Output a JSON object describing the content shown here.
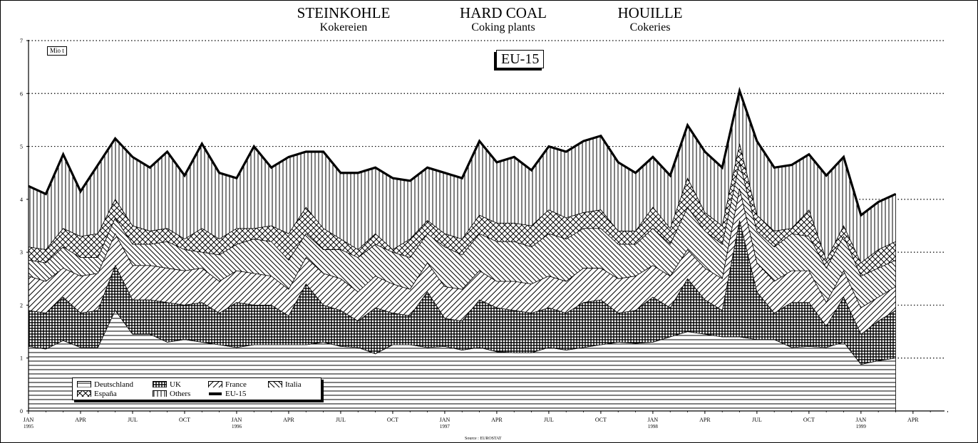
{
  "header": {
    "title_de": "STEINKOHLE",
    "title_en": "HARD COAL",
    "title_fr": "HOUILLE",
    "subtitle_de": "Kokereien",
    "subtitle_en": "Coking plants",
    "subtitle_fr": "Cokeries"
  },
  "unit_label": "Mio t",
  "region_badge": "EU-15",
  "source": "Source : EUROSTAT",
  "colors": {
    "ink": "#000000",
    "background": "#ffffff",
    "grid": "#000000"
  },
  "chart_data": {
    "type": "area",
    "stacked": true,
    "grid": "horizontal dotted",
    "legend_position": "bottom-left",
    "ylim": [
      0,
      7
    ],
    "y_ticks": [
      "0",
      "1",
      "2",
      "3",
      "4",
      "5",
      "6",
      "7"
    ],
    "x_tick_labels": [
      {
        "label": "JAN",
        "year": "1995"
      },
      {
        "label": "APR",
        "year": ""
      },
      {
        "label": "JUL",
        "year": ""
      },
      {
        "label": "OCT",
        "year": ""
      },
      {
        "label": "JAN",
        "year": "1996"
      },
      {
        "label": "APR",
        "year": ""
      },
      {
        "label": "JUL",
        "year": ""
      },
      {
        "label": "OCT",
        "year": ""
      },
      {
        "label": "JAN",
        "year": "1997"
      },
      {
        "label": "APR",
        "year": ""
      },
      {
        "label": "JUL",
        "year": ""
      },
      {
        "label": "OCT",
        "year": ""
      },
      {
        "label": "JAN",
        "year": "1998"
      },
      {
        "label": "APR",
        "year": ""
      },
      {
        "label": "JUL",
        "year": ""
      },
      {
        "label": "OCT",
        "year": ""
      },
      {
        "label": "JAN",
        "year": "1999"
      },
      {
        "label": "APR",
        "year": ""
      }
    ],
    "x": [
      "1995-01",
      "1995-02",
      "1995-03",
      "1995-04",
      "1995-05",
      "1995-06",
      "1995-07",
      "1995-08",
      "1995-09",
      "1995-10",
      "1995-11",
      "1995-12",
      "1996-01",
      "1996-02",
      "1996-03",
      "1996-04",
      "1996-05",
      "1996-06",
      "1996-07",
      "1996-08",
      "1996-09",
      "1996-10",
      "1996-11",
      "1996-12",
      "1997-01",
      "1997-02",
      "1997-03",
      "1997-04",
      "1997-05",
      "1997-06",
      "1997-07",
      "1997-08",
      "1997-09",
      "1997-10",
      "1997-11",
      "1997-12",
      "1998-01",
      "1998-02",
      "1998-03",
      "1998-04",
      "1998-05",
      "1998-06",
      "1998-07",
      "1998-08",
      "1998-09",
      "1998-10",
      "1998-11",
      "1998-12",
      "1999-01",
      "1999-02",
      "1999-03"
    ],
    "legend": [
      "Deutschland",
      "UK",
      "France",
      "Italia",
      "España",
      "Others",
      "EU-15"
    ],
    "stack_tops": [
      {
        "name": "Deutschland",
        "pattern": "hlines",
        "values": [
          1.22,
          1.17,
          1.33,
          1.2,
          1.2,
          1.9,
          1.45,
          1.45,
          1.3,
          1.35,
          1.3,
          1.25,
          1.2,
          1.25,
          1.25,
          1.25,
          1.25,
          1.3,
          1.22,
          1.2,
          1.08,
          1.25,
          1.25,
          1.2,
          1.22,
          1.15,
          1.2,
          1.12,
          1.1,
          1.1,
          1.2,
          1.15,
          1.2,
          1.25,
          1.3,
          1.28,
          1.3,
          1.4,
          1.5,
          1.45,
          1.4,
          1.4,
          1.35,
          1.35,
          1.2,
          1.22,
          1.2,
          1.3,
          0.88,
          0.95,
          1.0
        ]
      },
      {
        "name": "UK",
        "pattern": "grid",
        "values": [
          1.9,
          1.85,
          2.15,
          1.85,
          1.9,
          2.75,
          2.1,
          2.1,
          2.05,
          2.0,
          2.05,
          1.85,
          2.05,
          2.0,
          2.0,
          1.8,
          2.4,
          2.0,
          1.9,
          1.7,
          1.95,
          1.85,
          1.8,
          2.25,
          1.75,
          1.7,
          2.1,
          1.95,
          1.9,
          1.85,
          1.95,
          1.85,
          2.05,
          2.1,
          1.85,
          1.9,
          2.15,
          1.95,
          2.5,
          2.1,
          1.9,
          3.6,
          2.25,
          1.85,
          2.05,
          2.05,
          1.6,
          2.15,
          1.45,
          1.7,
          1.9
        ]
      },
      {
        "name": "France",
        "pattern": "diag",
        "values": [
          2.55,
          2.45,
          2.7,
          2.55,
          2.6,
          3.35,
          2.75,
          2.75,
          2.7,
          2.65,
          2.7,
          2.45,
          2.65,
          2.6,
          2.55,
          2.3,
          2.9,
          2.6,
          2.5,
          2.25,
          2.55,
          2.4,
          2.3,
          2.8,
          2.35,
          2.3,
          2.65,
          2.45,
          2.45,
          2.4,
          2.55,
          2.45,
          2.7,
          2.7,
          2.5,
          2.55,
          2.75,
          2.55,
          3.05,
          2.7,
          2.5,
          4.2,
          2.8,
          2.45,
          2.65,
          2.65,
          2.05,
          2.65,
          1.95,
          2.15,
          2.35
        ]
      },
      {
        "name": "Italia",
        "pattern": "backdiag",
        "values": [
          2.85,
          2.8,
          3.1,
          2.9,
          2.9,
          3.65,
          3.15,
          3.15,
          3.2,
          3.05,
          3.0,
          2.95,
          3.15,
          3.25,
          3.2,
          2.85,
          3.35,
          3.05,
          3.05,
          2.9,
          3.15,
          3.0,
          2.9,
          3.35,
          3.1,
          2.95,
          3.35,
          3.2,
          3.2,
          3.1,
          3.35,
          3.25,
          3.45,
          3.45,
          3.15,
          3.15,
          3.45,
          3.15,
          3.85,
          3.4,
          3.15,
          4.7,
          3.4,
          3.1,
          3.35,
          3.3,
          2.7,
          3.3,
          2.55,
          2.7,
          2.85
        ]
      },
      {
        "name": "España",
        "pattern": "crosshatch",
        "values": [
          3.1,
          3.05,
          3.45,
          3.3,
          3.35,
          4.0,
          3.5,
          3.4,
          3.45,
          3.25,
          3.45,
          3.25,
          3.45,
          3.45,
          3.5,
          3.35,
          3.85,
          3.45,
          3.25,
          3.05,
          3.35,
          3.05,
          3.25,
          3.6,
          3.35,
          3.25,
          3.7,
          3.55,
          3.55,
          3.5,
          3.8,
          3.65,
          3.75,
          3.8,
          3.4,
          3.4,
          3.85,
          3.45,
          4.4,
          3.75,
          3.5,
          5.05,
          3.7,
          3.4,
          3.45,
          3.8,
          2.85,
          3.5,
          2.8,
          3.05,
          3.2
        ]
      },
      {
        "name": "Others",
        "pattern": "vlines",
        "values": [
          4.25,
          4.1,
          4.85,
          4.15,
          4.65,
          5.15,
          4.8,
          4.6,
          4.9,
          4.45,
          5.05,
          4.5,
          4.4,
          5.0,
          4.6,
          4.8,
          4.9,
          4.9,
          4.5,
          4.5,
          4.6,
          4.4,
          4.35,
          4.6,
          4.5,
          4.4,
          5.1,
          4.7,
          4.8,
          4.55,
          5.0,
          4.9,
          5.1,
          5.2,
          4.7,
          4.5,
          4.8,
          4.45,
          5.4,
          4.9,
          4.6,
          6.05,
          5.1,
          4.6,
          4.65,
          4.85,
          4.45,
          4.8,
          3.7,
          3.95,
          4.1
        ]
      }
    ],
    "total_series": {
      "name": "EU-15",
      "values": [
        4.25,
        4.1,
        4.85,
        4.15,
        4.65,
        5.15,
        4.8,
        4.6,
        4.9,
        4.45,
        5.05,
        4.5,
        4.4,
        5.0,
        4.6,
        4.8,
        4.9,
        4.9,
        4.5,
        4.5,
        4.6,
        4.4,
        4.35,
        4.6,
        4.5,
        4.4,
        5.1,
        4.7,
        4.8,
        4.55,
        5.0,
        4.9,
        5.1,
        5.2,
        4.7,
        4.5,
        4.8,
        4.45,
        5.4,
        4.9,
        4.6,
        6.05,
        5.1,
        4.6,
        4.65,
        4.85,
        4.45,
        4.8,
        3.7,
        3.95,
        4.1
      ]
    }
  }
}
